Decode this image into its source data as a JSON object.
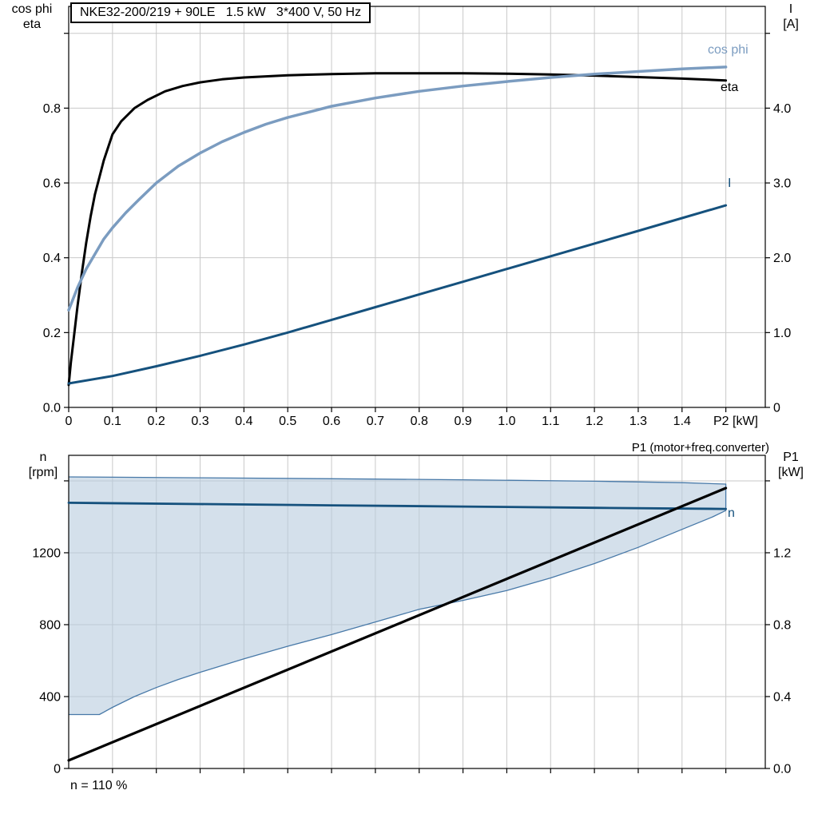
{
  "chart_data": [
    {
      "id": "electrical-curves",
      "type": "line",
      "title": "NKE32-200/219 + 90LE   1.5 kW   3*400 V, 50 Hz",
      "x_axis": {
        "label": "P2 [kW]",
        "range": [
          0,
          1.59
        ],
        "tick_values": [
          0,
          0.1,
          0.2,
          0.3,
          0.4,
          0.5,
          0.6,
          0.7,
          0.8,
          0.9,
          1.0,
          1.1,
          1.2,
          1.3,
          1.4
        ],
        "tick_labels": [
          "0",
          "0.1",
          "0.2",
          "0.3",
          "0.4",
          "0.5",
          "0.6",
          "0.7",
          "0.8",
          "0.9",
          "1.0",
          "1.1",
          "1.2",
          "1.3",
          "1.4"
        ],
        "grid": [
          0.1,
          0.2,
          0.3,
          0.4,
          0.5,
          0.6,
          0.7,
          0.8,
          0.9,
          1.0,
          1.1,
          1.2,
          1.3,
          1.4,
          1.5
        ]
      },
      "y_left": {
        "title_lines": [
          "cos phi",
          "eta"
        ],
        "range": [
          0,
          1.072
        ],
        "tick_values": [
          0,
          0.2,
          0.4,
          0.6,
          0.8
        ],
        "tick_labels": [
          "0.0",
          "0.2",
          "0.4",
          "0.6",
          "0.8"
        ],
        "grid": [
          0.2,
          0.4,
          0.6,
          0.8,
          1.0
        ]
      },
      "y_right": {
        "title_lines": [
          "I",
          "[A]"
        ],
        "range": [
          0,
          5.36
        ],
        "tick_values": [
          0,
          1,
          2,
          3,
          4
        ],
        "tick_labels": [
          "0",
          "1.0",
          "2.0",
          "3.0",
          "4.0"
        ],
        "grid": [
          1,
          2,
          3,
          4,
          5
        ]
      },
      "series": [
        {
          "name": "eta",
          "axis": "left",
          "color": "#000000",
          "width": 3,
          "x": [
            0,
            0.005,
            0.01,
            0.02,
            0.03,
            0.04,
            0.05,
            0.06,
            0.08,
            0.1,
            0.12,
            0.15,
            0.18,
            0.22,
            0.26,
            0.3,
            0.35,
            0.4,
            0.5,
            0.6,
            0.7,
            0.8,
            0.9,
            1.0,
            1.1,
            1.2,
            1.3,
            1.4,
            1.5
          ],
          "y": [
            0.06,
            0.12,
            0.17,
            0.27,
            0.36,
            0.44,
            0.51,
            0.57,
            0.66,
            0.73,
            0.765,
            0.8,
            0.822,
            0.845,
            0.859,
            0.869,
            0.877,
            0.882,
            0.888,
            0.891,
            0.893,
            0.893,
            0.893,
            0.892,
            0.89,
            0.887,
            0.883,
            0.879,
            0.874
          ]
        },
        {
          "name": "cos phi",
          "axis": "left",
          "color": "#7b9cc0",
          "width": 3.5,
          "x": [
            0,
            0.01,
            0.02,
            0.04,
            0.06,
            0.08,
            0.1,
            0.13,
            0.16,
            0.2,
            0.25,
            0.3,
            0.35,
            0.4,
            0.45,
            0.5,
            0.6,
            0.7,
            0.8,
            0.9,
            1.0,
            1.1,
            1.2,
            1.3,
            1.4,
            1.5
          ],
          "y": [
            0.26,
            0.29,
            0.32,
            0.37,
            0.41,
            0.45,
            0.48,
            0.52,
            0.555,
            0.6,
            0.645,
            0.68,
            0.71,
            0.735,
            0.757,
            0.775,
            0.805,
            0.827,
            0.845,
            0.859,
            0.871,
            0.882,
            0.891,
            0.898,
            0.905,
            0.91
          ]
        },
        {
          "name": "I",
          "axis": "right",
          "color": "#15517d",
          "width": 3,
          "x": [
            0,
            0.1,
            0.2,
            0.3,
            0.4,
            0.5,
            0.6,
            0.7,
            0.8,
            0.9,
            1.0,
            1.1,
            1.2,
            1.3,
            1.4,
            1.5
          ],
          "y": [
            0.32,
            0.42,
            0.55,
            0.69,
            0.84,
            1.0,
            1.17,
            1.34,
            1.51,
            1.68,
            1.85,
            2.02,
            2.19,
            2.36,
            2.53,
            2.7
          ]
        }
      ]
    },
    {
      "id": "speed-power",
      "type": "line-area",
      "top_right_label": "P1 (motor+freq.converter)",
      "footnote": "n = 110 %",
      "x_axis": {
        "range": [
          0,
          1.59
        ],
        "tick_values": [],
        "tick_labels": [],
        "grid": [
          0.1,
          0.2,
          0.3,
          0.4,
          0.5,
          0.6,
          0.7,
          0.8,
          0.9,
          1.0,
          1.1,
          1.2,
          1.3,
          1.4,
          1.5
        ]
      },
      "y_left": {
        "title_lines": [
          "n",
          "[rpm]"
        ],
        "range": [
          0,
          1742
        ],
        "tick_values": [
          0,
          400,
          800,
          1200
        ],
        "tick_labels": [
          "0",
          "400",
          "800",
          "1200"
        ],
        "grid": [
          400,
          800,
          1200,
          1600
        ]
      },
      "y_right": {
        "title_lines": [
          "P1",
          "[kW]"
        ],
        "range": [
          0,
          1.742
        ],
        "tick_values": [
          0,
          0.4,
          0.8,
          1.2
        ],
        "tick_labels": [
          "0.0",
          "0.4",
          "0.8",
          "1.2"
        ],
        "grid": [
          0.4,
          0.8,
          1.2,
          1.6
        ]
      },
      "area": {
        "name": "operating-envelope",
        "axis": "left",
        "fill": "#b8cbde",
        "fill_opacity": 0.6,
        "stroke": "#4879a8",
        "lower": {
          "x": [
            0,
            0.07,
            0.1,
            0.15,
            0.2,
            0.25,
            0.3,
            0.4,
            0.5,
            0.6,
            0.7,
            0.8,
            0.9,
            1.0,
            1.1,
            1.2,
            1.3,
            1.4,
            1.47,
            1.5
          ],
          "y": [
            300,
            300,
            340,
            400,
            450,
            495,
            535,
            610,
            680,
            745,
            815,
            885,
            935,
            990,
            1060,
            1140,
            1230,
            1330,
            1400,
            1435
          ]
        },
        "upper": {
          "x": [
            0,
            0.3,
            0.6,
            0.9,
            1.2,
            1.4,
            1.5
          ],
          "y": [
            1622,
            1617,
            1612,
            1606,
            1598,
            1590,
            1582
          ]
        }
      },
      "series": [
        {
          "name": "n",
          "axis": "left",
          "color": "#15517d",
          "width": 2.8,
          "x": [
            0,
            0.3,
            0.6,
            0.9,
            1.2,
            1.5
          ],
          "y": [
            1478,
            1471,
            1464,
            1457,
            1450,
            1444
          ]
        },
        {
          "name": "P1",
          "axis": "right",
          "color": "#000000",
          "width": 3.2,
          "x": [
            0,
            1.5
          ],
          "y": [
            0.045,
            1.56
          ]
        }
      ]
    }
  ]
}
